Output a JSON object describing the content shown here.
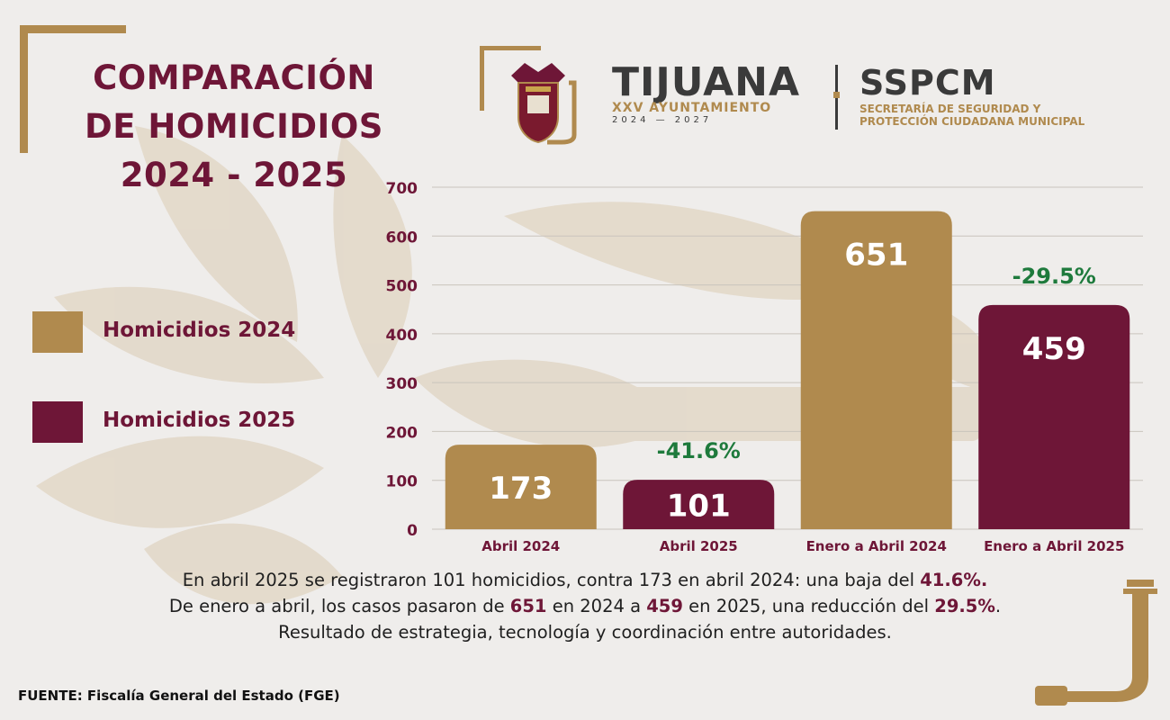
{
  "header": {
    "title_lines": [
      "COMPARACIÓN",
      "DE HOMICIDIOS",
      "2024 - 2025"
    ],
    "city": "TIJUANA",
    "ayuntamiento": "XXV AYUNTAMIENTO",
    "period": "2024 — 2027",
    "org": "SSPCM",
    "org_sub_line1": "SECRETARÍA DE SEGURIDAD Y",
    "org_sub_line2": "PROTECCIÓN CIUDADANA MUNICIPAL"
  },
  "legend": [
    {
      "label": "Homicidios 2024",
      "color": "#b08a4e"
    },
    {
      "label": "Homicidios 2025",
      "color": "#6e1637"
    }
  ],
  "chart_data": {
    "type": "bar",
    "categories": [
      "Abril 2024",
      "Abril 2025",
      "Enero a Abril 2024",
      "Enero a Abril 2025"
    ],
    "values": [
      173,
      101,
      651,
      459
    ],
    "series_of_bar": [
      "Homicidios 2024",
      "Homicidios 2025",
      "Homicidios 2024",
      "Homicidios 2025"
    ],
    "bar_colors": [
      "#b08a4e",
      "#6e1637",
      "#b08a4e",
      "#6e1637"
    ],
    "annotations": [
      {
        "category": "Abril 2025",
        "text": "-41.6%"
      },
      {
        "category": "Enero a Abril 2025",
        "text": "-29.5%"
      }
    ],
    "ylim": [
      0,
      700
    ],
    "yticks": [
      0,
      100,
      200,
      300,
      400,
      500,
      600,
      700
    ],
    "grid": true,
    "annotation_color": "#1e7a3c"
  },
  "summary": {
    "line1_a": "En abril 2025 se registraron 101 homicidios, contra 173 en abril 2024: una baja del ",
    "line1_b": "41.6%.",
    "line2_a": "De enero a abril, los casos pasaron de ",
    "line2_b": "651",
    "line2_c": " en 2024 a ",
    "line2_d": "459",
    "line2_e": " en 2025, una reducción del ",
    "line2_f": "29.5%",
    "line2_g": ".",
    "line3": "Resultado de estrategia, tecnología y coordinación entre autoridades."
  },
  "source": "FUENTE: Fiscalía General del Estado (FGE)",
  "colors": {
    "gold": "#b08a4e",
    "wine": "#6e1637",
    "green": "#1e7a3c",
    "background": "#efedeb"
  }
}
